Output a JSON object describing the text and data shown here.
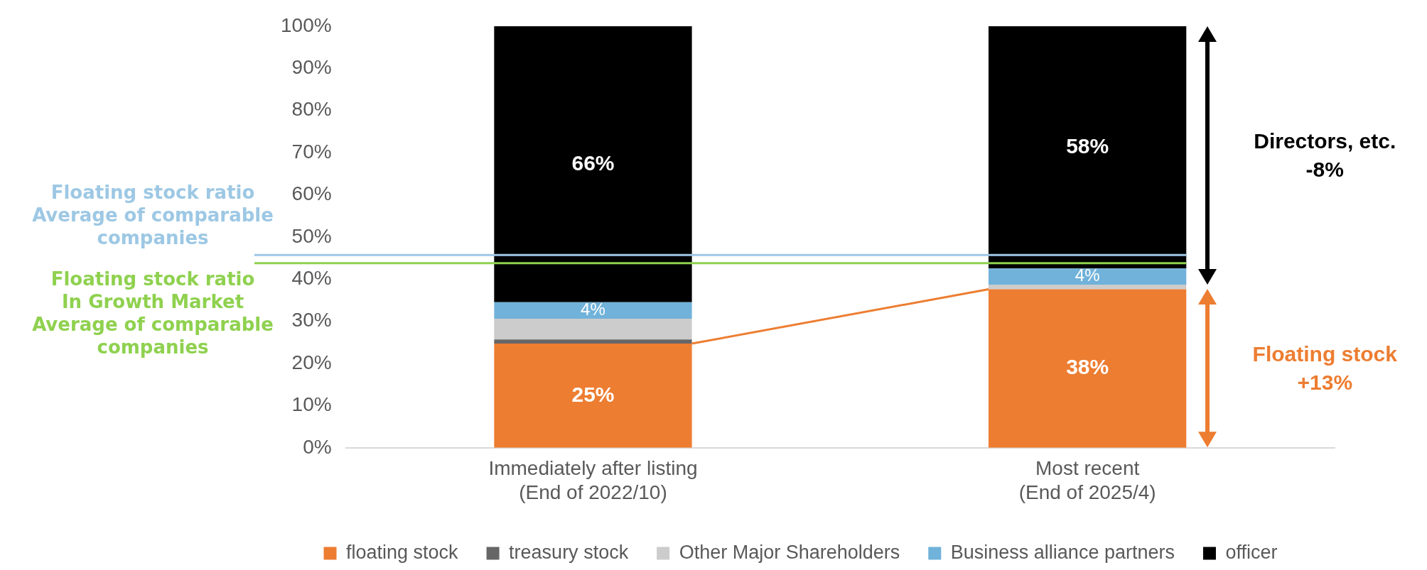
{
  "chart_data": {
    "type": "bar",
    "stacked": true,
    "categories": [
      "Immediately after listing\n(End of 2022/10)",
      "Most recent\n(End of 2025/4)"
    ],
    "series": [
      {
        "name": "floating stock",
        "color": "#ed7d31",
        "values": [
          24.7,
          37.6
        ],
        "value_labels": [
          "25%",
          "38%"
        ]
      },
      {
        "name": "treasury stock",
        "color": "#666666",
        "values": [
          1.0,
          0.0
        ],
        "value_labels": [
          null,
          null
        ]
      },
      {
        "name": "Other Major Shareholders",
        "color": "#cccccc",
        "values": [
          4.9,
          1.1
        ],
        "value_labels": [
          null,
          null
        ]
      },
      {
        "name": "Business alliance partners",
        "color": "#70b2da",
        "values": [
          3.9,
          3.8
        ],
        "value_labels": [
          "4%",
          "4%"
        ]
      },
      {
        "name": "officer",
        "color": "#000000",
        "values": [
          65.5,
          57.5
        ],
        "value_labels": [
          "66%",
          "58%"
        ]
      }
    ],
    "ylim": [
      0,
      100
    ],
    "yticks": [
      {
        "value": 0,
        "label": "0%"
      },
      {
        "value": 10,
        "label": "10%"
      },
      {
        "value": 20,
        "label": "20%"
      },
      {
        "value": 30,
        "label": "30%"
      },
      {
        "value": 40,
        "label": "40%"
      },
      {
        "value": 50,
        "label": "50%"
      },
      {
        "value": 60,
        "label": "60%"
      },
      {
        "value": 70,
        "label": "70%"
      },
      {
        "value": 80,
        "label": "80%"
      },
      {
        "value": 90,
        "label": "90%"
      },
      {
        "value": 100,
        "label": "100%"
      }
    ],
    "grid": false,
    "legend": "bottom",
    "ref_lines": [
      {
        "axis": "y",
        "value": 45.7,
        "label": "Floating stock ratio\nAverage of comparable\ncompanies",
        "color": "#9dc8e4"
      },
      {
        "axis": "y",
        "value": 43.8,
        "label": "Floating stock ratio\nIn Growth Market\nAverage of comparable\ncompanies",
        "color": "#8fd14f"
      }
    ],
    "annotations": [
      "Directors, etc.\n-8%",
      "Floating stock\n+13%"
    ]
  }
}
